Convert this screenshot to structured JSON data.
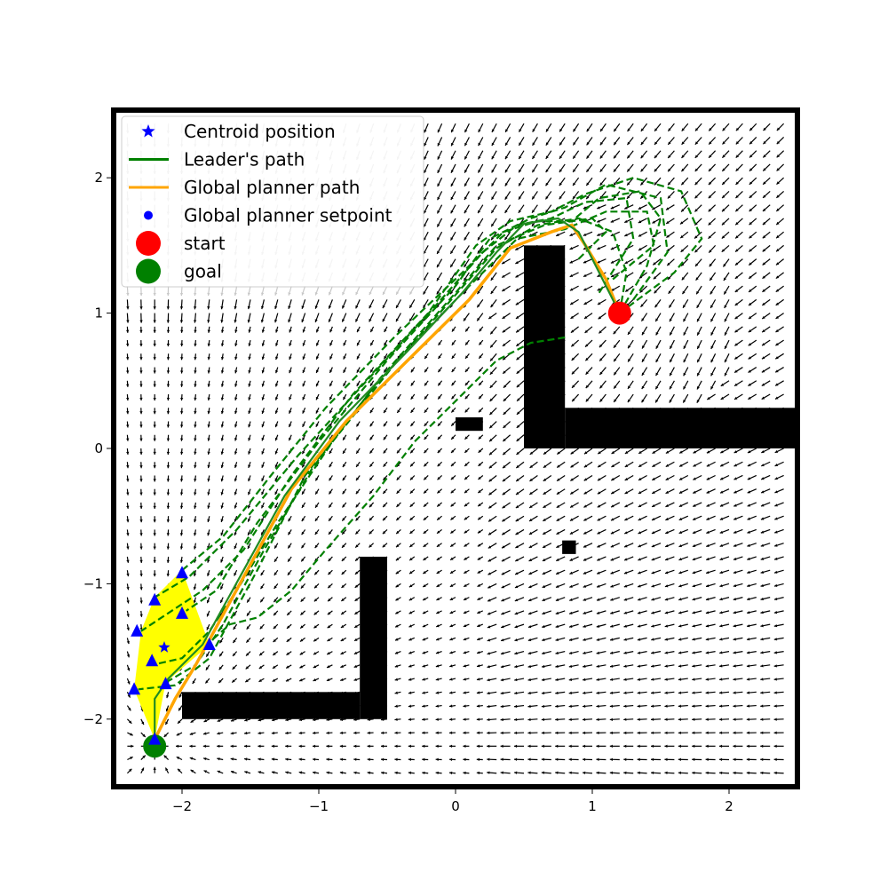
{
  "chart_data": {
    "type": "quiver",
    "xlim": [
      -2.5,
      2.5
    ],
    "ylim": [
      -2.5,
      2.5
    ],
    "xticks": [
      {
        "value": -2,
        "label": "−2"
      },
      {
        "value": -1,
        "label": "−1"
      },
      {
        "value": 0,
        "label": "0"
      },
      {
        "value": 1,
        "label": "1"
      },
      {
        "value": 2,
        "label": "2"
      }
    ],
    "yticks": [
      {
        "value": 2,
        "label": "2"
      },
      {
        "value": 1,
        "label": "1"
      },
      {
        "value": 0,
        "label": "0"
      },
      {
        "value": -1,
        "label": "−1"
      },
      {
        "value": -2,
        "label": "−2"
      }
    ],
    "legend": {
      "placement": "top-left",
      "entries": [
        {
          "label": "Centroid position",
          "marker": "star",
          "color": "#0000ff"
        },
        {
          "label": "Leader's path",
          "marker": "line",
          "color": "#008000"
        },
        {
          "label": "Global planner path",
          "marker": "line",
          "color": "#ffa500"
        },
        {
          "label": "Global planner setpoint",
          "marker": "dot",
          "color": "#0000ff"
        },
        {
          "label": "start",
          "marker": "circle",
          "color": "#ff0000"
        },
        {
          "label": "goal",
          "marker": "circle",
          "color": "#008000"
        }
      ]
    },
    "start": [
      1.2,
      1.0
    ],
    "goal": [
      -2.2,
      -2.2
    ],
    "obstacles": [
      [
        0.5,
        0.0,
        0.3,
        1.5
      ],
      [
        0.8,
        0.0,
        1.7,
        0.3
      ],
      [
        -0.7,
        -2.0,
        0.2,
        1.2
      ],
      [
        -2.0,
        -2.0,
        1.3,
        0.2
      ],
      [
        0.0,
        0.13,
        0.2,
        0.1
      ],
      [
        0.78,
        -0.78,
        0.1,
        0.1
      ]
    ],
    "global_planner_path": [
      [
        1.2,
        1.0
      ],
      [
        1.1,
        1.25
      ],
      [
        0.95,
        1.5
      ],
      [
        0.85,
        1.65
      ],
      [
        0.7,
        1.6
      ],
      [
        0.4,
        1.48
      ],
      [
        0.1,
        1.1
      ],
      [
        -0.3,
        0.7
      ],
      [
        -0.8,
        0.2
      ],
      [
        -1.2,
        -0.3
      ],
      [
        -1.55,
        -0.95
      ],
      [
        -1.9,
        -1.6
      ],
      [
        -2.05,
        -1.85
      ],
      [
        -2.2,
        -2.15
      ]
    ],
    "leader_path": [
      [
        1.2,
        1.0
      ],
      [
        1.1,
        1.2
      ],
      [
        1.0,
        1.4
      ],
      [
        0.9,
        1.6
      ],
      [
        0.75,
        1.7
      ],
      [
        0.5,
        1.66
      ],
      [
        0.3,
        1.45
      ],
      [
        0.05,
        1.15
      ],
      [
        -0.35,
        0.72
      ],
      [
        -0.85,
        0.2
      ],
      [
        -1.25,
        -0.35
      ],
      [
        -1.55,
        -0.9
      ],
      [
        -1.85,
        -1.45
      ],
      [
        -2.1,
        -1.7
      ],
      [
        -2.2,
        -1.85
      ],
      [
        -2.2,
        -2.15
      ]
    ],
    "follower_paths": [
      [
        [
          1.2,
          1.0
        ],
        [
          1.4,
          1.35
        ],
        [
          1.5,
          1.7
        ],
        [
          1.35,
          1.9
        ],
        [
          1.05,
          1.85
        ],
        [
          0.85,
          1.68
        ],
        [
          0.6,
          1.68
        ],
        [
          0.35,
          1.6
        ],
        [
          0.05,
          1.3
        ],
        [
          -0.45,
          0.82
        ],
        [
          -0.95,
          0.3
        ],
        [
          -1.35,
          -0.2
        ],
        [
          -1.7,
          -0.65
        ],
        [
          -2.0,
          -0.9
        ]
      ],
      [
        [
          1.05,
          1.15
        ],
        [
          1.3,
          1.55
        ],
        [
          1.25,
          1.85
        ],
        [
          0.95,
          1.82
        ],
        [
          0.7,
          1.7
        ],
        [
          0.45,
          1.65
        ],
        [
          0.2,
          1.45
        ],
        [
          -0.15,
          1.05
        ],
        [
          -0.65,
          0.5
        ],
        [
          -1.15,
          -0.05
        ],
        [
          -1.6,
          -0.6
        ],
        [
          -1.95,
          -0.95
        ],
        [
          -2.2,
          -1.1
        ]
      ],
      [
        [
          1.2,
          1.0
        ],
        [
          1.6,
          1.3
        ],
        [
          1.8,
          1.55
        ],
        [
          1.65,
          1.9
        ],
        [
          1.3,
          2.0
        ],
        [
          0.95,
          1.88
        ],
        [
          0.7,
          1.75
        ],
        [
          0.4,
          1.68
        ],
        [
          0.15,
          1.5
        ],
        [
          -0.2,
          1.0
        ],
        [
          -0.75,
          0.4
        ],
        [
          -1.2,
          -0.2
        ],
        [
          -1.55,
          -0.75
        ],
        [
          -1.85,
          -1.05
        ],
        [
          -2.3,
          -1.35
        ]
      ],
      [
        [
          1.3,
          1.1
        ],
        [
          1.55,
          1.45
        ],
        [
          1.5,
          1.85
        ],
        [
          1.1,
          1.95
        ],
        [
          0.8,
          1.78
        ],
        [
          0.55,
          1.7
        ],
        [
          0.25,
          1.55
        ],
        [
          0.0,
          1.2
        ],
        [
          -0.5,
          0.65
        ],
        [
          -1.0,
          0.05
        ],
        [
          -1.45,
          -0.55
        ],
        [
          -1.75,
          -1.05
        ],
        [
          -1.97,
          -1.2
        ]
      ],
      [
        [
          0.8,
          0.82
        ],
        [
          0.55,
          0.78
        ],
        [
          0.3,
          0.65
        ],
        [
          0.0,
          0.35
        ],
        [
          -0.3,
          0.05
        ],
        [
          -0.6,
          -0.35
        ],
        [
          -0.95,
          -0.75
        ],
        [
          -1.2,
          -1.05
        ],
        [
          -1.45,
          -1.25
        ],
        [
          -1.65,
          -1.3
        ],
        [
          -1.82,
          -1.45
        ]
      ],
      [
        [
          1.15,
          1.25
        ],
        [
          1.45,
          1.5
        ],
        [
          1.4,
          1.75
        ],
        [
          1.1,
          1.75
        ],
        [
          0.8,
          1.62
        ],
        [
          0.45,
          1.55
        ],
        [
          0.1,
          1.2
        ],
        [
          -0.4,
          0.68
        ],
        [
          -0.9,
          0.05
        ],
        [
          -1.3,
          -0.55
        ],
        [
          -1.6,
          -1.05
        ],
        [
          -1.8,
          -1.35
        ],
        [
          -2.0,
          -1.55
        ],
        [
          -2.22,
          -1.6
        ]
      ],
      [
        [
          0.9,
          1.4
        ],
        [
          1.1,
          1.6
        ],
        [
          1.0,
          1.7
        ],
        [
          0.65,
          1.65
        ],
        [
          0.3,
          1.5
        ],
        [
          0.0,
          1.15
        ],
        [
          -0.55,
          0.52
        ],
        [
          -1.05,
          -0.15
        ],
        [
          -1.4,
          -0.75
        ],
        [
          -1.7,
          -1.3
        ],
        [
          -1.9,
          -1.6
        ],
        [
          -2.12,
          -1.73
        ]
      ],
      [
        [
          1.2,
          1.0
        ],
        [
          1.25,
          1.3
        ],
        [
          1.15,
          1.6
        ],
        [
          0.9,
          1.7
        ],
        [
          0.6,
          1.65
        ],
        [
          0.3,
          1.48
        ],
        [
          -0.1,
          1.02
        ],
        [
          -0.6,
          0.45
        ],
        [
          -1.1,
          -0.2
        ],
        [
          -1.45,
          -0.9
        ],
        [
          -1.8,
          -1.55
        ],
        [
          -2.05,
          -1.75
        ],
        [
          -2.32,
          -1.78
        ]
      ]
    ],
    "formation_polygon": [
      [
        -2.0,
        -0.9
      ],
      [
        -1.8,
        -1.45
      ],
      [
        -2.12,
        -1.73
      ],
      [
        -2.2,
        -2.15
      ],
      [
        -2.35,
        -1.78
      ],
      [
        -2.3,
        -1.35
      ],
      [
        -2.2,
        -1.1
      ]
    ],
    "robots": [
      [
        -2.0,
        -0.92
      ],
      [
        -2.2,
        -1.12
      ],
      [
        -2.0,
        -1.22
      ],
      [
        -2.33,
        -1.35
      ],
      [
        -1.8,
        -1.45
      ],
      [
        -2.22,
        -1.57
      ],
      [
        -2.12,
        -1.74
      ],
      [
        -2.35,
        -1.78
      ],
      [
        -2.2,
        -2.15
      ]
    ],
    "centroid": [
      -2.13,
      -1.47
    ],
    "colors": {
      "obstacle": "#000000",
      "formation": "#ffff00",
      "robot": "#0000ff",
      "follower_path": "#008000",
      "leader_path": "#228b22",
      "planner_path": "#ffa500",
      "start": "#ff0000",
      "goal": "#008000",
      "arrow": "#000000"
    }
  }
}
